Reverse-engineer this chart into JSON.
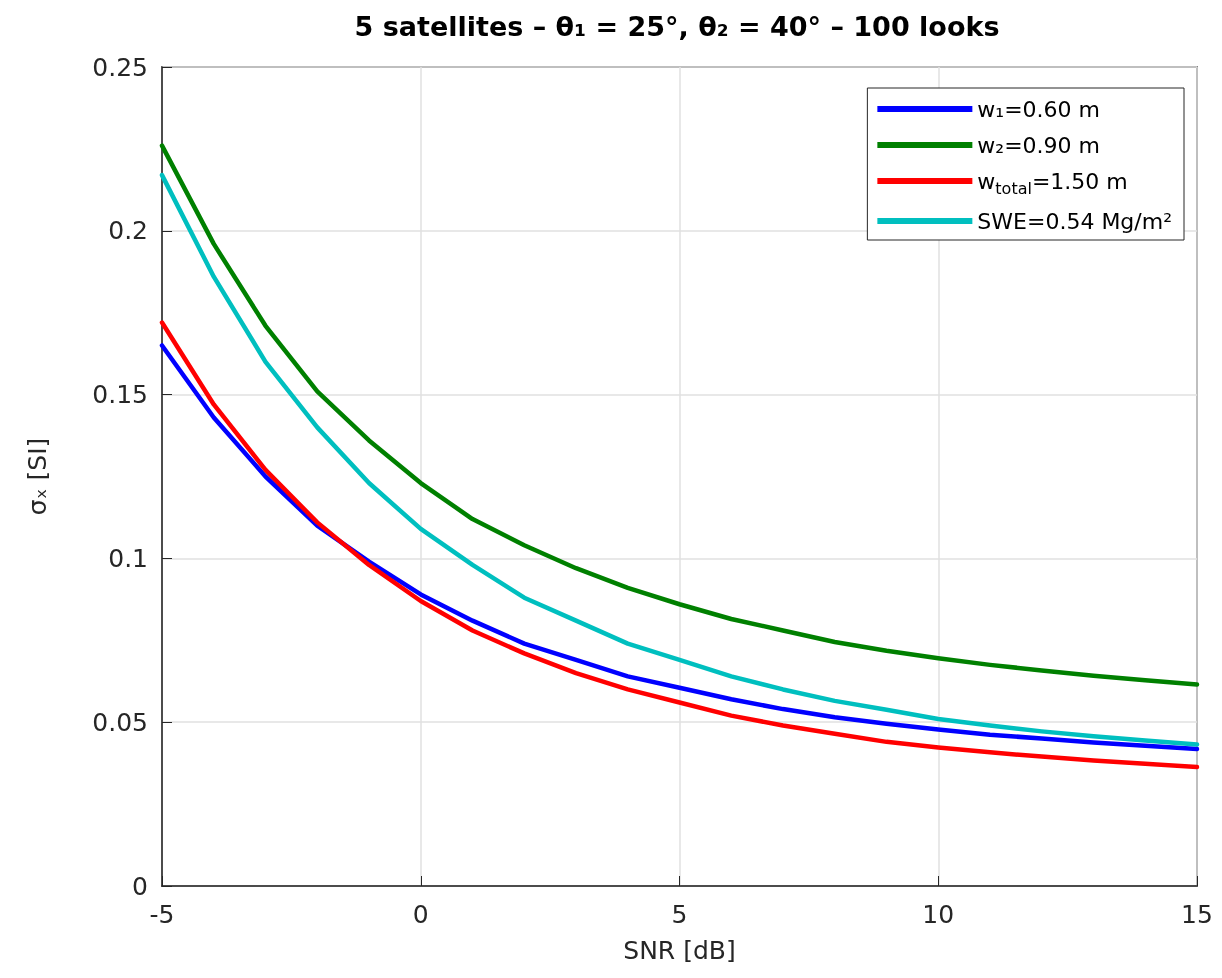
{
  "chart_data": {
    "type": "line",
    "title": "5 satellites – θ₁ = 25°, θ₂ = 40° – 100 looks",
    "xlabel": "SNR [dB]",
    "ylabel": "σₓ [SI]",
    "x": [
      -5,
      -4,
      -3,
      -2,
      -1,
      0,
      1,
      2,
      3,
      4,
      5,
      6,
      7,
      8,
      9,
      10,
      11,
      12,
      13,
      14,
      15
    ],
    "series": [
      {
        "name": "w₁=0.60 m",
        "color": "#0000ff",
        "values": [
          0.165,
          0.143,
          0.125,
          0.11,
          0.099,
          0.089,
          0.081,
          0.074,
          0.069,
          0.064,
          0.0605,
          0.057,
          0.054,
          0.0515,
          0.0495,
          0.0478,
          0.0462,
          0.045,
          0.0438,
          0.0428,
          0.0418
        ]
      },
      {
        "name": "w₂=0.90 m",
        "color": "#008000",
        "values": [
          0.226,
          0.196,
          0.171,
          0.151,
          0.136,
          0.123,
          0.112,
          0.104,
          0.097,
          0.091,
          0.086,
          0.0815,
          0.078,
          0.0745,
          0.0718,
          0.0695,
          0.0675,
          0.0658,
          0.0642,
          0.0628,
          0.0615
        ]
      },
      {
        "name": "w$_{total}$=1.50 m",
        "color": "#ff0000",
        "values": [
          0.172,
          0.147,
          0.127,
          0.111,
          0.098,
          0.087,
          0.078,
          0.071,
          0.065,
          0.06,
          0.056,
          0.052,
          0.049,
          0.0465,
          0.044,
          0.0423,
          0.0408,
          0.0395,
          0.0383,
          0.0373,
          0.0363
        ]
      },
      {
        "name": "SWE=0.54 Mg/m²",
        "color": "#00bfbf",
        "values": [
          0.217,
          0.186,
          0.16,
          0.14,
          0.123,
          0.109,
          0.098,
          0.088,
          0.081,
          0.074,
          0.069,
          0.064,
          0.06,
          0.0565,
          0.0538,
          0.051,
          0.049,
          0.0472,
          0.0457,
          0.0444,
          0.0432
        ]
      }
    ],
    "xlim": [
      -5,
      15
    ],
    "xticks": [
      -5,
      0,
      5,
      10,
      15
    ],
    "ylim": [
      0,
      0.25
    ],
    "yticks": [
      0,
      0.05,
      0.1,
      0.15,
      0.2,
      0.25
    ],
    "grid": true,
    "legend": "top right",
    "marker": "none",
    "line_style": "solid"
  }
}
